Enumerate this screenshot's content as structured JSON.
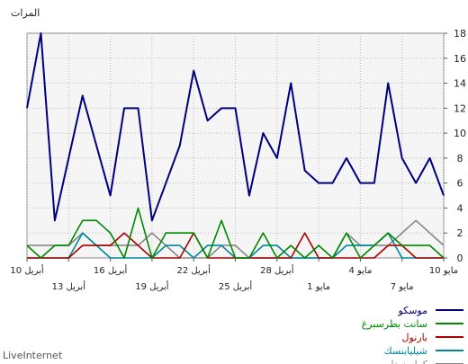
{
  "brand": "LiveInternet",
  "chart_data": {
    "type": "line",
    "ylabel": "المرات",
    "ylim": [
      0,
      18
    ],
    "yticks": [
      0,
      2,
      4,
      6,
      8,
      10,
      12,
      14,
      16,
      18
    ],
    "grid": true,
    "legend_position": "bottom-right",
    "x_tick_labels": [
      {
        "label": "10 مايو",
        "index": 0,
        "row": 1
      },
      {
        "label": "7 مايو",
        "index": 3,
        "row": 2
      },
      {
        "label": "4 مايو",
        "index": 6,
        "row": 1
      },
      {
        "label": "1 مايو",
        "index": 9,
        "row": 2
      },
      {
        "label": "28 أبريل",
        "index": 12,
        "row": 1
      },
      {
        "label": "25 أبريل",
        "index": 15,
        "row": 2
      },
      {
        "label": "22 أبريل",
        "index": 18,
        "row": 1
      },
      {
        "label": "19 أبريل",
        "index": 21,
        "row": 2
      },
      {
        "label": "16 أبريل",
        "index": 24,
        "row": 1
      },
      {
        "label": "13 أبريل",
        "index": 27,
        "row": 2
      },
      {
        "label": "10 أبريل",
        "index": 30,
        "row": 1
      }
    ],
    "series": [
      {
        "name": "موسكو",
        "color": "#00007f",
        "values": [
          5,
          8,
          6,
          8,
          14,
          6,
          6,
          8,
          6,
          6,
          7,
          14,
          8,
          10,
          5,
          12,
          12,
          11,
          15,
          9,
          6,
          3,
          12,
          12,
          5,
          9,
          13,
          8,
          3,
          18,
          12
        ]
      },
      {
        "name": "سانت بطرسبرغ",
        "color": "#008800",
        "values": [
          0,
          1,
          1,
          1,
          2,
          1,
          0,
          2,
          0,
          1,
          0,
          1,
          0,
          2,
          0,
          0,
          3,
          0,
          2,
          2,
          2,
          0,
          4,
          0,
          2,
          3,
          3,
          1,
          1,
          0,
          1
        ]
      },
      {
        "name": "بارنول",
        "color": "#aa0000",
        "values": [
          0,
          0,
          0,
          1,
          1,
          0,
          0,
          0,
          0,
          0,
          2,
          0,
          0,
          0,
          0,
          0,
          0,
          0,
          2,
          0,
          0,
          0,
          1,
          2,
          1,
          1,
          1,
          0,
          0,
          0,
          0
        ]
      },
      {
        "name": "شيليابنسك",
        "color": "#008899",
        "values": [
          0,
          0,
          0,
          0,
          2,
          1,
          1,
          1,
          0,
          0,
          0,
          0,
          1,
          1,
          0,
          0,
          1,
          1,
          0,
          1,
          1,
          0,
          0,
          0,
          0,
          1,
          2,
          0,
          0,
          0,
          0
        ]
      },
      {
        "name": "كراسنودار",
        "color": "#888888",
        "values": [
          1,
          2,
          3,
          2,
          1,
          1,
          1,
          2,
          0,
          0,
          0,
          0,
          0,
          0,
          0,
          1,
          1,
          0,
          0,
          0,
          1,
          2,
          1,
          1,
          1,
          1,
          2,
          1,
          1,
          1,
          1
        ]
      }
    ]
  }
}
